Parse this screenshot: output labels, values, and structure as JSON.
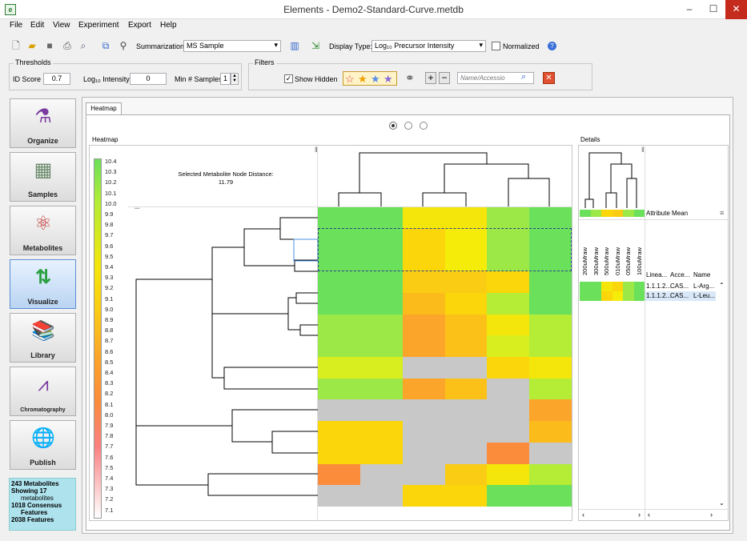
{
  "window": {
    "title": "Elements - Demo2-Standard-Curve.metdb",
    "app_icon_letter": "e",
    "minimize": "–",
    "maximize": "☐",
    "close": "✕"
  },
  "menu": [
    "File",
    "Edit",
    "View",
    "Experiment",
    "Export",
    "Help"
  ],
  "toolbar": {
    "summarization_label": "Summarization:",
    "summarization_value": "MS Sample",
    "display_type_label": "Display Type:",
    "display_type_value": "Log₁₀ Precursor Intensity",
    "normalized_label": "Normalized"
  },
  "thresholds": {
    "title": "Thresholds",
    "id_score_label": "ID Score",
    "id_score_value": "0.7",
    "intensity_label": "Log₁₀ Intensity",
    "intensity_value": "0",
    "min_samples_label": "Min # Samples",
    "min_samples_value": "1"
  },
  "filters": {
    "title": "Filters",
    "show_hidden_label": "Show Hidden",
    "show_hidden_checked": "✓",
    "search_placeholder": "Name/Accessio"
  },
  "nav": [
    {
      "label": "Organize",
      "icon": "flasks-icon",
      "glyph": "⚗"
    },
    {
      "label": "Samples",
      "icon": "plate-icon",
      "glyph": "▦"
    },
    {
      "label": "Metabolites",
      "icon": "molecule-icon",
      "glyph": "⚛"
    },
    {
      "label": "Visualize",
      "icon": "arrows-icon",
      "glyph": "⇅"
    },
    {
      "label": "Library",
      "icon": "books-icon",
      "glyph": "📚"
    },
    {
      "label": "Chromatography",
      "icon": "chromatogram-icon",
      "glyph": "⩘"
    },
    {
      "label": "Publish",
      "icon": "globe-icon",
      "glyph": "🌐"
    }
  ],
  "status": {
    "line1": "243 Metabolites",
    "line2": "Showing 17",
    "line3": "metabolites",
    "line4": "1018 Consensus",
    "line5": "Features",
    "line6": "2038 Features"
  },
  "tab_label": "Heatmap",
  "heatmap": {
    "section_title": "Heatmap",
    "selected_distance_label": "Selected Metabolite Node Distance:",
    "selected_distance_value": "11.79",
    "legend_ticks": [
      "10.4",
      "10.3",
      "10.2",
      "10.1",
      "10.0",
      "9.9",
      "9.8",
      "9.7",
      "9.6",
      "9.5",
      "9.4",
      "9.3",
      "9.2",
      "9.1",
      "9.0",
      "8.9",
      "8.8",
      "8.7",
      "8.6",
      "8.5",
      "8.4",
      "8.3",
      "8.2",
      "8.1",
      "8.0",
      "7.9",
      "7.8",
      "7.7",
      "7.6",
      "7.5",
      "7.4",
      "7.3",
      "7.2",
      "7.1"
    ],
    "cells": [
      [
        "#6be05a",
        "#6be05a",
        "#f4e60a",
        "#f4e60a",
        "#9be846",
        "#6be05a"
      ],
      [
        "#6be05a",
        "#6be05a",
        "#fad60a",
        "#f6ec0a",
        "#9be846",
        "#6be05a"
      ],
      [
        "#6be05a",
        "#6be05a",
        "#fad60a",
        "#f6ec0a",
        "#9be846",
        "#6be05a"
      ],
      [
        "#6be05a",
        "#6be05a",
        "#fbcc14",
        "#fbcc14",
        "#fad60a",
        "#6be05a"
      ],
      [
        "#6be05a",
        "#6be05a",
        "#fbbb1a",
        "#fad60a",
        "#b4ec36",
        "#6be05a"
      ],
      [
        "#9be846",
        "#9be846",
        "#fba52a",
        "#fbc119",
        "#f4e60a",
        "#b4ec36"
      ],
      [
        "#9be846",
        "#9be846",
        "#fba52a",
        "#fbc119",
        "#d8ee1e",
        "#b4ec36"
      ],
      [
        "#d8ee1e",
        "#d8ee1e",
        "#c8c8c8",
        "#c8c8c8",
        "#fad60a",
        "#f4e60a"
      ],
      [
        "#9be846",
        "#9be846",
        "#fba52a",
        "#fbc119",
        "#c8c8c8",
        "#b4ec36"
      ],
      [
        "#c8c8c8",
        "#c8c8c8",
        "#c8c8c8",
        "#c8c8c8",
        "#c8c8c8",
        "#fba52a"
      ],
      [
        "#fad60a",
        "#fad60a",
        "#c8c8c8",
        "#c8c8c8",
        "#c8c8c8",
        "#fbbb1a"
      ],
      [
        "#fad60a",
        "#fad60a",
        "#c8c8c8",
        "#c8c8c8",
        "#fa8c3c",
        "#c8c8c8"
      ],
      [
        "#fa8c3c",
        "#c8c8c8",
        "#c8c8c8",
        "#fbcc14",
        "#f4e60a",
        "#b4ec36"
      ],
      [
        "#c8c8c8",
        "#c8c8c8",
        "#fad60a",
        "#fad60a",
        "#6be05a",
        "#6be05a"
      ]
    ]
  },
  "details": {
    "section_title": "Details",
    "attribute_mean_label": "Attribute Mean",
    "attribute_mean_colors": [
      "#6be05a",
      "#9be846",
      "#fad60a",
      "#fbcc14",
      "#9be846",
      "#6be05a"
    ],
    "sample_columns": [
      "200uMraw",
      "300uMraw",
      "500uMraw",
      "010uMraw",
      "050uMraw",
      "100uMraw"
    ],
    "row_colors": [
      [
        "#6be05a",
        "#6be05a",
        "#f4e60a",
        "#fad60a",
        "#9be846",
        "#6be05a"
      ],
      [
        "#6be05a",
        "#6be05a",
        "#fad60a",
        "#f6ec0a",
        "#9be846",
        "#6be05a"
      ]
    ],
    "headers": [
      "Linea...",
      "Acce...",
      "Name"
    ],
    "rows": [
      [
        "1.1.1.2...",
        "CAS...",
        "L-Arg..."
      ],
      [
        "1.1.1.2...",
        "CAS...",
        "L-Leu..."
      ]
    ]
  }
}
